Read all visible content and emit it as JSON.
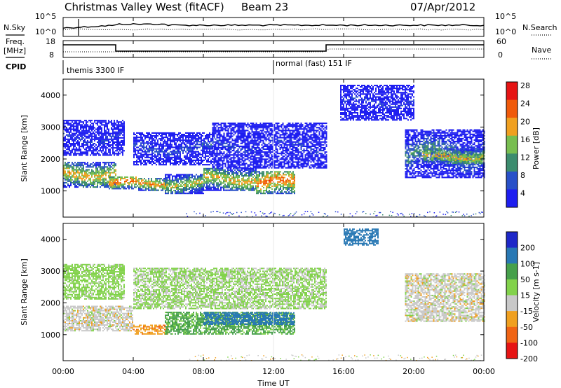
{
  "header": {
    "title": "Christmas Valley West (fitACF)",
    "beam": "Beam 23",
    "date": "07/Apr/2012"
  },
  "side_labels": {
    "nsky": "N.Sky",
    "nsearch": "N.Search",
    "freq_line1": "Freq.",
    "freq_line2": "[MHz]",
    "nave": "Nave",
    "cpid": "CPID"
  },
  "noise_axis": {
    "left_top": "10^5",
    "left_bottom": "10^0",
    "right_top": "10^5",
    "right_bottom": "10^0"
  },
  "freq_axis": {
    "left_top": "18",
    "left_bottom": "8",
    "right_top": "60",
    "right_bottom": "0"
  },
  "cpid_segments": [
    {
      "label": "themis 3300 IF",
      "start_hour": 0,
      "end_hour": 12
    },
    {
      "label": "normal (fast) 151 IF",
      "start_hour": 12,
      "end_hour": 24
    }
  ],
  "chart_data": [
    {
      "type": "heatmap",
      "title": "",
      "ylabel": "Slant Range [km]",
      "xlabel": "Time UT",
      "x_ticks": [
        "00:00",
        "04:00",
        "08:00",
        "12:00",
        "16:00",
        "20:00",
        "00:00"
      ],
      "xlim_hours": [
        0,
        24
      ],
      "ylim_km": [
        180,
        4500
      ],
      "y_ticks": [
        "1000",
        "2000",
        "3000",
        "4000"
      ],
      "colorbar": {
        "label": "Power [dB]",
        "ticks": [
          "4",
          "8",
          "12",
          "16",
          "20",
          "24",
          "28"
        ],
        "colors": [
          "#1e1ef0",
          "#2850c8",
          "#3c8c6e",
          "#78be50",
          "#f0a020",
          "#f05a0a",
          "#e61414"
        ]
      },
      "echo_bands": [
        {
          "start_hour": 0.0,
          "end_hour": 3.0,
          "low_km": 1100,
          "high_km": 1900,
          "db": 22
        },
        {
          "start_hour": 2.6,
          "end_hour": 4.2,
          "low_km": 1050,
          "high_km": 1450,
          "db": 26
        },
        {
          "start_hour": 4.2,
          "end_hour": 6.0,
          "low_km": 1000,
          "high_km": 1400,
          "db": 24
        },
        {
          "start_hour": 5.8,
          "end_hour": 8.0,
          "low_km": 900,
          "high_km": 1500,
          "db": 20
        },
        {
          "start_hour": 8.0,
          "end_hour": 11.0,
          "low_km": 1000,
          "high_km": 1700,
          "db": 22
        },
        {
          "start_hour": 11.0,
          "end_hour": 13.2,
          "low_km": 900,
          "high_km": 1600,
          "db": 26
        },
        {
          "start_hour": 0.0,
          "end_hour": 3.5,
          "low_km": 2100,
          "high_km": 3200,
          "db": 8
        },
        {
          "start_hour": 4.0,
          "end_hour": 8.5,
          "low_km": 1800,
          "high_km": 2800,
          "db": 10
        },
        {
          "start_hour": 8.5,
          "end_hour": 15.0,
          "low_km": 1700,
          "high_km": 3100,
          "db": 8
        },
        {
          "start_hour": 15.8,
          "end_hour": 20.0,
          "low_km": 3200,
          "high_km": 4300,
          "db": 8
        },
        {
          "start_hour": 19.5,
          "end_hour": 24.0,
          "low_km": 1400,
          "high_km": 2900,
          "db": 14
        },
        {
          "start_hour": 20.5,
          "end_hour": 24.0,
          "low_km": 1800,
          "high_km": 2300,
          "db": 22
        }
      ]
    },
    {
      "type": "heatmap",
      "title": "",
      "ylabel": "Slant Range [km]",
      "xlabel": "Time UT",
      "x_ticks": [
        "00:00",
        "04:00",
        "08:00",
        "12:00",
        "16:00",
        "20:00",
        "00:00"
      ],
      "xlim_hours": [
        0,
        24
      ],
      "ylim_km": [
        180,
        4500
      ],
      "y_ticks": [
        "1000",
        "2000",
        "3000",
        "4000"
      ],
      "colorbar": {
        "label": "Velocity [m s-1]",
        "ticks": [
          "200",
          "100",
          "50",
          "15",
          "-15",
          "-50",
          "-100",
          "-200"
        ],
        "colors": [
          "#1e28c8",
          "#2878b4",
          "#46a04b",
          "#82d24b",
          "#c8c8c8",
          "#f0a020",
          "#f06414",
          "#e61414"
        ]
      },
      "echo_bands": [
        {
          "start_hour": 0.0,
          "end_hour": 4.0,
          "low_km": 1100,
          "high_km": 1900,
          "ms": 0
        },
        {
          "start_hour": 4.0,
          "end_hour": 6.0,
          "low_km": 1000,
          "high_km": 1300,
          "ms": -40
        },
        {
          "start_hour": 5.8,
          "end_hour": 13.2,
          "low_km": 1000,
          "high_km": 1700,
          "ms": 60
        },
        {
          "start_hour": 8.0,
          "end_hour": 13.2,
          "low_km": 1300,
          "high_km": 1700,
          "ms": 120
        },
        {
          "start_hour": 0.0,
          "end_hour": 3.5,
          "low_km": 2100,
          "high_km": 3200,
          "ms": 30
        },
        {
          "start_hour": 4.0,
          "end_hour": 15.0,
          "low_km": 1800,
          "high_km": 3100,
          "ms": 20
        },
        {
          "start_hour": 16.0,
          "end_hour": 18.0,
          "low_km": 3800,
          "high_km": 4300,
          "ms": 180
        },
        {
          "start_hour": 19.5,
          "end_hour": 24.0,
          "low_km": 1400,
          "high_km": 2900,
          "ms": 0
        }
      ]
    }
  ]
}
